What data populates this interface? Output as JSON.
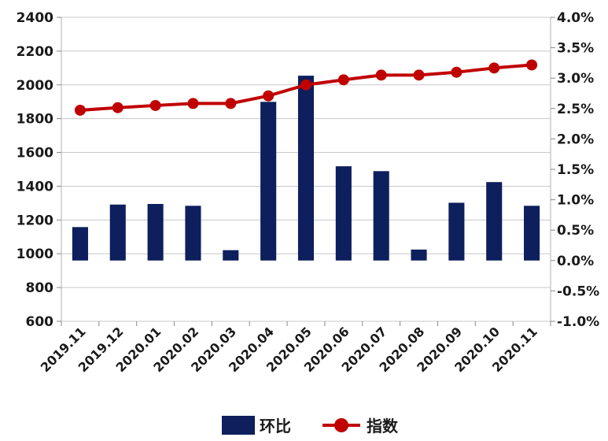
{
  "chart_data": {
    "type": "bar+line",
    "categories": [
      "2019.11",
      "2019.12",
      "2020.01",
      "2020.02",
      "2020.03",
      "2020.04",
      "2020.05",
      "2020.06",
      "2020.07",
      "2020.08",
      "2020.09",
      "2020.10",
      "2020.11"
    ],
    "series": [
      {
        "name": "环比",
        "type": "bar",
        "axis": "right",
        "color": "#0d1f5c",
        "values": [
          0.55,
          0.92,
          0.93,
          0.9,
          0.17,
          2.61,
          3.04,
          1.55,
          1.47,
          0.18,
          0.95,
          1.29,
          0.9
        ]
      },
      {
        "name": "指数",
        "type": "line",
        "axis": "left",
        "color": "#c00000",
        "values": [
          1850,
          1865,
          1878,
          1890,
          1890,
          1935,
          2000,
          2030,
          2058,
          2058,
          2075,
          2100,
          2118
        ]
      }
    ],
    "y_left": {
      "min": 600,
      "max": 2400,
      "step": 200,
      "ticks": [
        "600",
        "800",
        "1000",
        "1200",
        "1400",
        "1600",
        "1800",
        "2000",
        "2200",
        "2400"
      ]
    },
    "y_right": {
      "min": -1.0,
      "max": 4.0,
      "step": 0.5,
      "ticks": [
        "-1.0%",
        "-0.5%",
        "0.0%",
        "0.5%",
        "1.0%",
        "1.5%",
        "2.0%",
        "2.5%",
        "3.0%",
        "3.5%",
        "4.0%"
      ]
    },
    "grid": "horizontal",
    "legend": "bottom-center"
  }
}
